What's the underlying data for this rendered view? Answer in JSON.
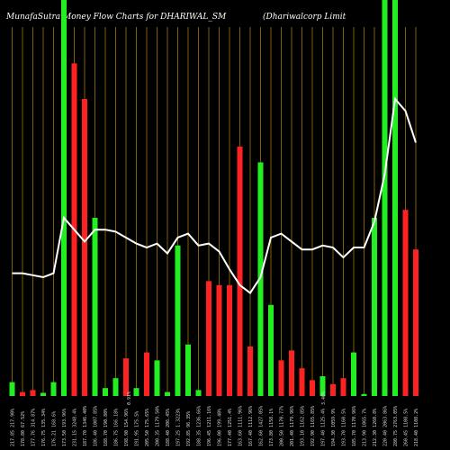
{
  "header": {
    "left": "MunafaSutra  Money Flow  Charts for DHARIWAL_SM",
    "right": "(Dhariwalcorp Limit"
  },
  "chart_data": {
    "type": "bar",
    "title": "MunafaSutra Money Flow Charts for DHARIWAL_SM",
    "subtitle": "(Dhariwalcorp Limit",
    "colors": {
      "up": "#22ee22",
      "down": "#ff2222",
      "line": "#ffffff",
      "grid": "#b8860b"
    },
    "ylim": [
      0,
      100
    ],
    "categories": [
      "1",
      "2",
      "3",
      "4",
      "5",
      "6",
      "7",
      "8",
      "9",
      "10",
      "11",
      "12",
      "13",
      "14",
      "15",
      "16",
      "17",
      "18",
      "19",
      "20",
      "21",
      "22",
      "23",
      "24",
      "25",
      "26",
      "27",
      "28",
      "29",
      "30",
      "31",
      "32",
      "33",
      "34",
      "35",
      "36",
      "37",
      "38",
      "39",
      "40"
    ],
    "x_tick_labels": [
      "217.85 217.90%",
      "178.80 67.52%",
      "177.76 314.87%",
      "176.75 135.34%",
      "176.21 168.6%",
      "173.50 193.96%",
      "231.15 3248.4%",
      "187.70 1346.40%",
      "186.40 1007.85%",
      "188.70 190.80%",
      "186.75 166.18%",
      "198.90 154.96%",
      "191.95 175.5%",
      "205.50 175.65%",
      "200.35 1179.50%",
      "188.40 206.45%",
      "197.25 1.3223%",
      "192.85 96.35%",
      "188.35 1236.66%",
      "196.45 1211.16%",
      "196.00 199.40%",
      "177.40 1251.4%",
      "163.60 1111.96%",
      "167.40 1112.96%",
      "162.60 1427.05%",
      "173.80 1158.1%",
      "200.50 1170.77%",
      "201.40 1179.96%",
      "193.10 1162.85%",
      "192.90 1165.85%",
      "197.40 1125.4%",
      "194.30 1059.9%",
      "193.70 1160.5%",
      "185.70 1170.96%",
      "213.90 1065.7%",
      "212.30 1260.8%",
      "220.40 2063.86%",
      "280.75 2763.05%",
      "260.45 1108.5%",
      "218.40 1108.2%"
    ],
    "side_labels": [
      "0.91%",
      "3.40%"
    ],
    "values": [
      3.5,
      1.0,
      1.5,
      0.8,
      3.5,
      100,
      84,
      75,
      45,
      2.0,
      4.5,
      9.5,
      2.0,
      11,
      9,
      1.0,
      38,
      13,
      1.5,
      29,
      28,
      28,
      63,
      12.5,
      59,
      23,
      9,
      11.5,
      7,
      4,
      5,
      3,
      4.5,
      11,
      0.5,
      45,
      100,
      103,
      47,
      37
    ],
    "bar_colors": [
      "up",
      "down",
      "down",
      "up",
      "up",
      "up",
      "down",
      "down",
      "up",
      "up",
      "up",
      "down",
      "up",
      "down",
      "up",
      "up",
      "up",
      "up",
      "up",
      "down",
      "down",
      "down",
      "down",
      "down",
      "up",
      "up",
      "down",
      "down",
      "down",
      "down",
      "up",
      "down",
      "down",
      "up",
      "up",
      "up",
      "up",
      "up",
      "down",
      "down"
    ],
    "line": [
      31,
      31,
      30.5,
      30,
      31,
      45,
      42,
      39,
      42,
      42,
      41.5,
      40,
      38.5,
      37.5,
      38.5,
      36,
      40,
      41,
      38,
      38.5,
      36.5,
      32,
      28,
      26,
      30,
      40,
      41,
      39,
      37,
      37,
      38,
      37.5,
      35,
      37.5,
      37.5,
      44,
      56,
      75,
      72,
      64
    ]
  }
}
